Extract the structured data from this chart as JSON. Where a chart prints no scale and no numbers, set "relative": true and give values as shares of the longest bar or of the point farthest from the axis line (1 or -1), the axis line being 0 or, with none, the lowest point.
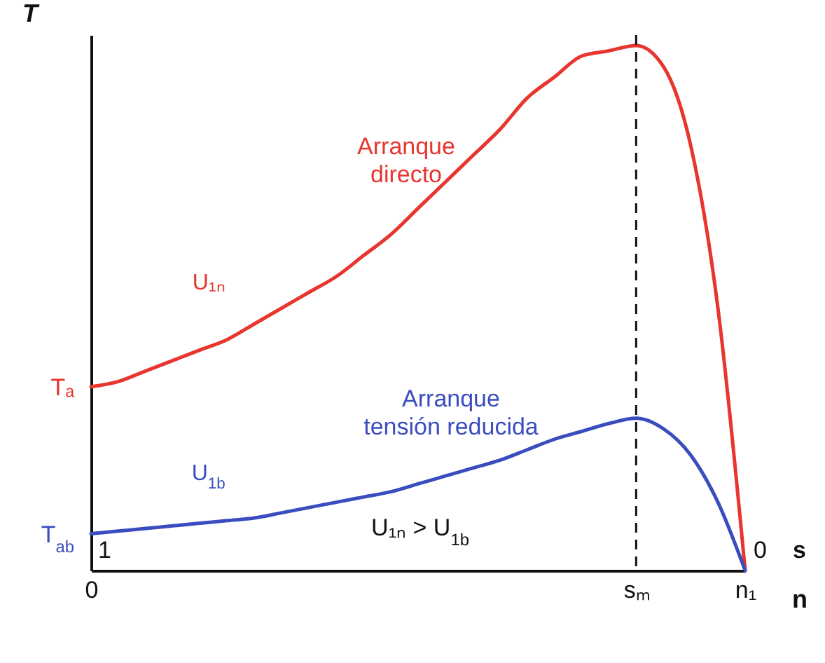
{
  "chart_data": {
    "type": "line",
    "relative": true,
    "xlabel": "n",
    "ylabel": "T",
    "marker": "none",
    "line_style": "solid",
    "categories": [
      "0",
      null,
      null,
      null,
      null,
      null,
      null,
      null,
      null,
      null,
      null,
      null,
      null,
      null,
      null,
      null,
      null,
      null,
      null,
      null,
      "sₘ",
      null,
      null,
      null,
      "n₁"
    ],
    "series": [
      {
        "name": "U₁ₙ",
        "color": "#e8352e",
        "values": [
          0.35,
          0.36,
          0.38,
          0.4,
          0.42,
          0.44,
          0.47,
          0.5,
          0.53,
          0.56,
          0.6,
          0.64,
          0.69,
          0.74,
          0.79,
          0.84,
          0.9,
          0.94,
          0.98,
          0.99,
          1,
          0.96,
          0.81,
          0.5,
          0
        ]
      },
      {
        "name": "U$_{1b}$",
        "color": "#3a4dbf",
        "values": [
          0.07,
          0.075,
          0.08,
          0.085,
          0.09,
          0.095,
          0.1,
          0.11,
          0.12,
          0.13,
          0.14,
          0.15,
          0.165,
          0.18,
          0.195,
          0.21,
          0.23,
          0.25,
          0.265,
          0.28,
          0.29,
          0.27,
          0.22,
          0.13,
          0
        ]
      }
    ],
    "ref_lines": [
      {
        "axis": "x",
        "value": "sₘ",
        "line_style": "dashed"
      }
    ],
    "annotations": [
      "Tₐ",
      "T$_{ab}$",
      "Arranque directo",
      "Arranque tensión reducida",
      "1",
      "0",
      "s",
      "U₁ₙ > U$_{1b}$"
    ]
  }
}
